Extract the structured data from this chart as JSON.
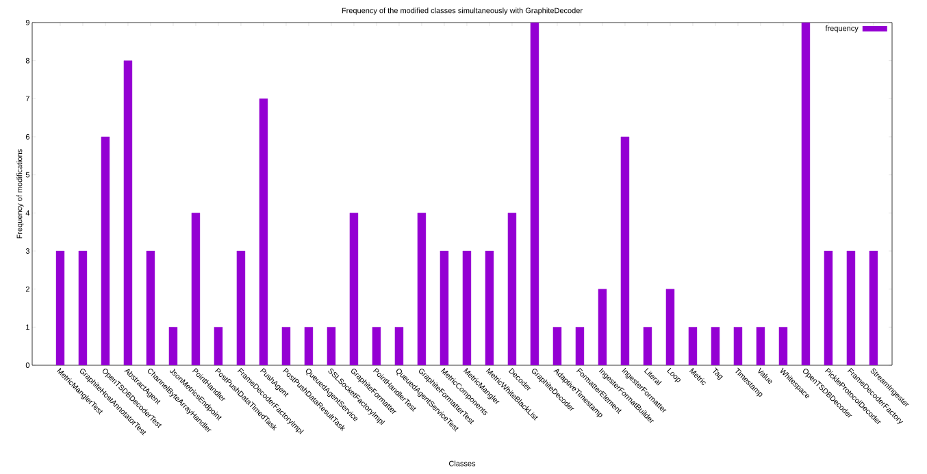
{
  "chart_data": {
    "type": "bar",
    "title": "Frequency of the modified classes simultaneously with GraphiteDecoder",
    "xlabel": "Classes",
    "ylabel": "Frequency of modifications",
    "categories": [
      "MetricManglerTest",
      "GraphiteHostAnnotatorTest",
      "OpenTSDBDecoderTest",
      "AbstractAgent",
      "ChannelByteArrayHandler",
      "JsonMetricsEndpoint",
      "PointHandler",
      "PostPushDataTimedTask",
      "FrameDecoderFactoryImpl",
      "PushAgent",
      "PostPushDataResultTask",
      "QueuedAgentService",
      "SSLSocketFactoryImpl",
      "GraphiteFormatter",
      "PointHandlerTest",
      "QueuedAgentServiceTest",
      "GraphiteFormatterTest",
      "MetricComponents",
      "MetricMangler",
      "MetricWhiteBlackList",
      "Decoder",
      "GraphiteDecoder",
      "AdaptiveTimestamp",
      "FormatterElement",
      "IngesterFormatBuilder",
      "IngesterFormatter",
      "Literal",
      "Loop",
      "Metric",
      "Tag",
      "Timestamp",
      "Value",
      "Whitespace",
      "OpenTSDBDecoder",
      "PickleProtocolDecoder",
      "FrameDecoderFactory",
      "StreamIngester"
    ],
    "series": [
      {
        "name": "frequency",
        "color": "#9400d3",
        "values": [
          3,
          3,
          6,
          8,
          3,
          1,
          4,
          1,
          3,
          7,
          1,
          1,
          1,
          4,
          1,
          1,
          4,
          3,
          3,
          3,
          4,
          9,
          1,
          1,
          2,
          6,
          1,
          2,
          1,
          1,
          1,
          1,
          1,
          9,
          3,
          3,
          3
        ]
      }
    ],
    "ylim": [
      0,
      9
    ],
    "yticks": [
      0,
      1,
      2,
      3,
      4,
      5,
      6,
      7,
      8,
      9
    ],
    "legend": "top right"
  }
}
